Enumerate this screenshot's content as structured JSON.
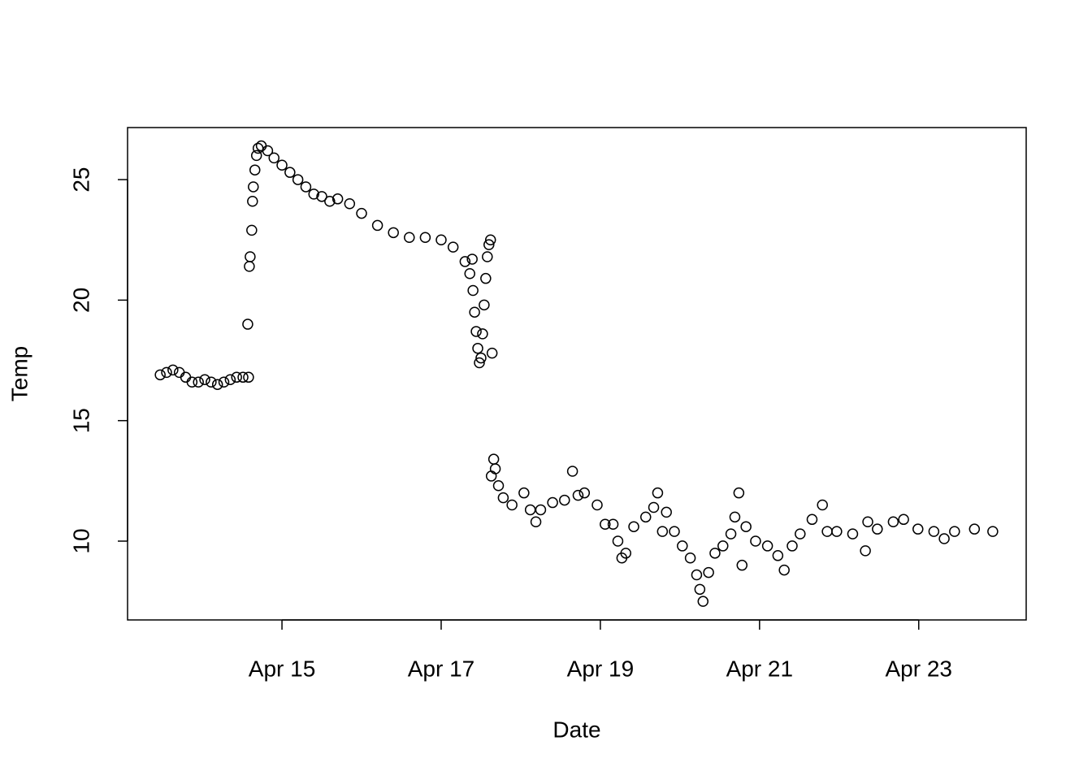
{
  "chart_data": {
    "type": "scatter",
    "x_label": "Date",
    "y_label": "Temp",
    "x": [
      13.47,
      13.55,
      13.63,
      13.71,
      13.79,
      13.87,
      13.95,
      14.03,
      14.11,
      14.19,
      14.27,
      14.35,
      14.43,
      14.51,
      14.58,
      14.57,
      14.59,
      14.6,
      14.62,
      14.63,
      14.64,
      14.66,
      14.68,
      14.7,
      14.74,
      14.82,
      14.9,
      15.0,
      15.1,
      15.2,
      15.3,
      15.4,
      15.5,
      15.6,
      15.7,
      15.85,
      16.0,
      16.2,
      16.4,
      16.6,
      16.8,
      17.0,
      17.15,
      17.3,
      17.36,
      17.39,
      17.4,
      17.42,
      17.44,
      17.46,
      17.48,
      17.5,
      17.52,
      17.54,
      17.56,
      17.58,
      17.6,
      17.62,
      17.64,
      17.63,
      17.66,
      17.68,
      17.72,
      17.78,
      17.89,
      18.04,
      18.12,
      18.19,
      18.25,
      18.4,
      18.55,
      18.65,
      18.72,
      18.8,
      18.96,
      19.06,
      19.16,
      19.22,
      19.27,
      19.32,
      19.42,
      19.57,
      19.67,
      19.72,
      19.78,
      19.83,
      19.93,
      20.03,
      20.13,
      20.21,
      20.25,
      20.29,
      20.36,
      20.44,
      20.54,
      20.64,
      20.69,
      20.74,
      20.78,
      20.83,
      20.95,
      21.1,
      21.23,
      21.31,
      21.41,
      21.51,
      21.66,
      21.79,
      21.85,
      21.97,
      22.17,
      22.33,
      22.36,
      22.48,
      22.68,
      22.81,
      22.99,
      23.19,
      23.32,
      23.45,
      23.7,
      23.93
    ],
    "values": [
      16.9,
      17.0,
      17.1,
      17.0,
      16.8,
      16.6,
      16.6,
      16.7,
      16.6,
      16.5,
      16.6,
      16.7,
      16.8,
      16.8,
      16.8,
      19.0,
      21.4,
      21.8,
      22.9,
      24.1,
      24.7,
      25.4,
      26.0,
      26.3,
      26.4,
      26.2,
      25.9,
      25.6,
      25.3,
      25.0,
      24.7,
      24.4,
      24.3,
      24.1,
      24.2,
      24.0,
      23.6,
      23.1,
      22.8,
      22.6,
      22.6,
      22.5,
      22.2,
      21.6,
      21.1,
      21.7,
      20.4,
      19.5,
      18.7,
      18.0,
      17.4,
      17.6,
      18.6,
      19.8,
      20.9,
      21.8,
      22.3,
      22.5,
      17.8,
      12.7,
      13.4,
      13.0,
      12.3,
      11.8,
      11.5,
      12.0,
      11.3,
      10.8,
      11.3,
      11.6,
      11.7,
      12.9,
      11.9,
      12.0,
      11.5,
      10.7,
      10.7,
      10.0,
      9.3,
      9.5,
      10.6,
      11.0,
      11.4,
      12.0,
      10.4,
      11.2,
      10.4,
      9.8,
      9.3,
      8.6,
      8.0,
      7.5,
      8.7,
      9.5,
      9.8,
      10.3,
      11.0,
      12.0,
      9.0,
      10.6,
      10.0,
      9.8,
      9.4,
      8.8,
      9.8,
      10.3,
      10.9,
      11.5,
      10.4,
      10.4,
      10.3,
      9.6,
      10.8,
      10.5,
      10.8,
      10.9,
      10.5,
      10.4,
      10.1,
      10.4,
      10.5,
      10.4
    ],
    "color": "#000000",
    "xlim": [
      13.06,
      24.35
    ],
    "xticks": [
      {
        "value": 15,
        "label": "Apr 15"
      },
      {
        "value": 17,
        "label": "Apr 17"
      },
      {
        "value": 19,
        "label": "Apr 19"
      },
      {
        "value": 21,
        "label": "Apr 21"
      },
      {
        "value": 23,
        "label": "Apr 23"
      }
    ],
    "ylim": [
      6.73,
      27.16
    ],
    "yticks": [
      10,
      15,
      20,
      25
    ],
    "grid": false
  }
}
